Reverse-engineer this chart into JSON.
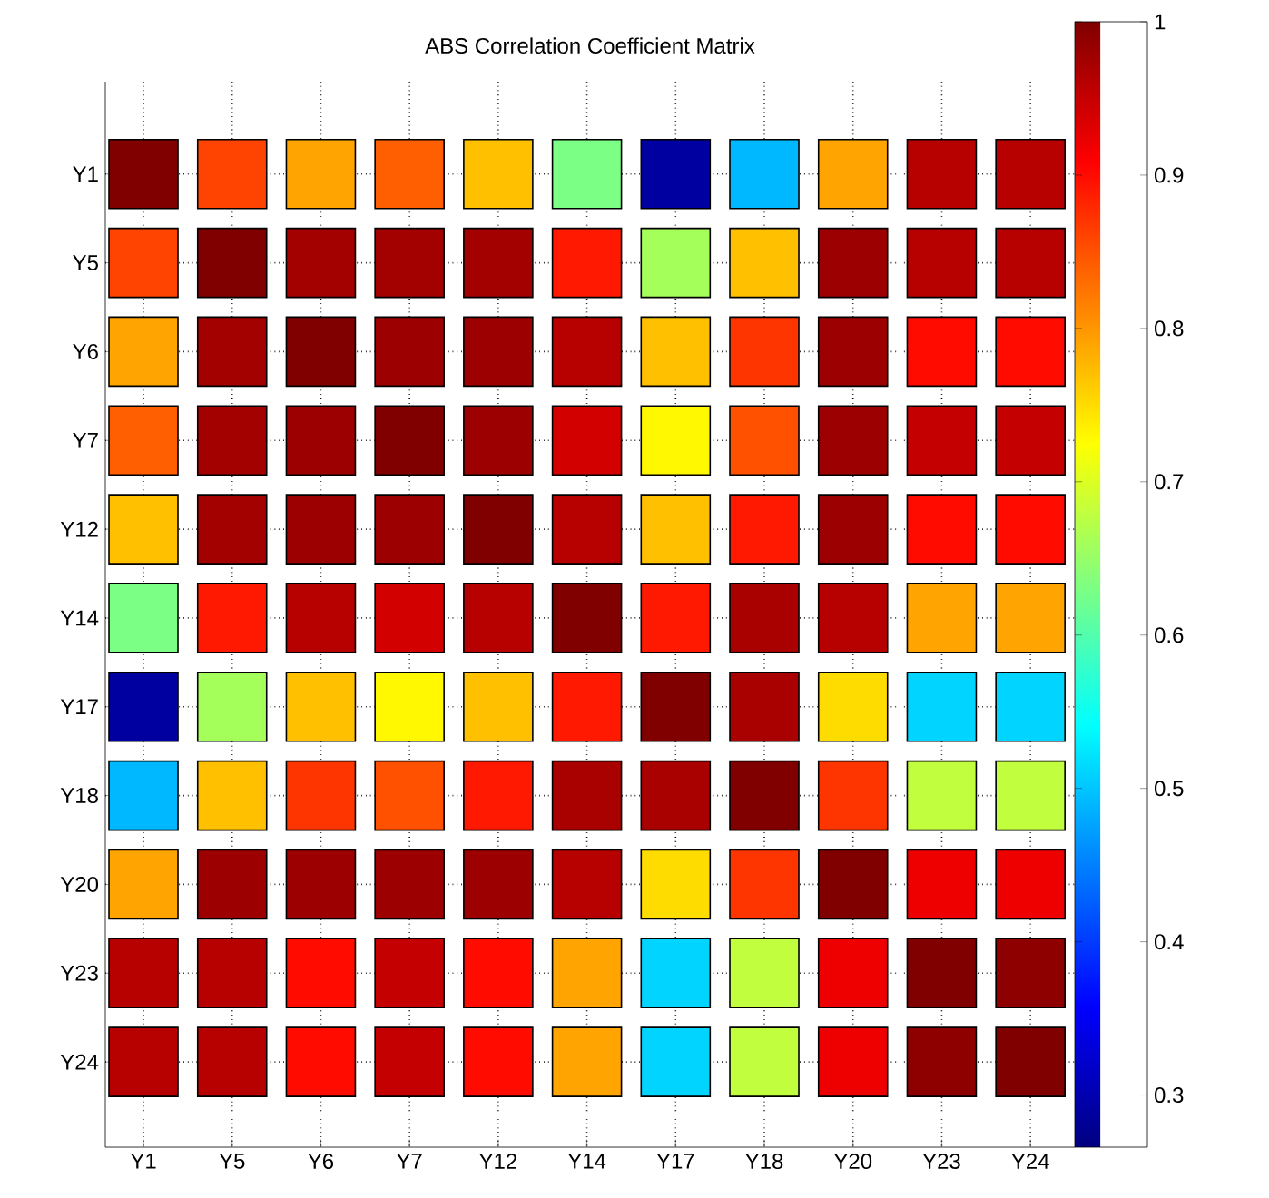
{
  "chart_data": {
    "type": "heatmap",
    "title": "ABS Correlation Coefficient Matrix",
    "categories": [
      "Y1",
      "Y5",
      "Y6",
      "Y7",
      "Y12",
      "Y14",
      "Y17",
      "Y18",
      "Y20",
      "Y23",
      "Y24"
    ],
    "y_categories": [
      "Y1",
      "Y5",
      "Y6",
      "Y7",
      "Y12",
      "Y14",
      "Y17",
      "Y18",
      "Y20",
      "Y23",
      "Y24"
    ],
    "cells": [
      [
        1,
        0.86,
        0.79,
        0.84,
        0.77,
        0.63,
        0.29,
        0.49,
        0.79,
        0.96,
        0.96
      ],
      [
        0.86,
        1,
        0.975,
        0.975,
        0.975,
        0.89,
        0.66,
        0.77,
        0.98,
        0.96,
        0.96
      ],
      [
        0.79,
        0.975,
        1,
        0.98,
        0.98,
        0.96,
        0.77,
        0.87,
        0.98,
        0.9,
        0.9
      ],
      [
        0.84,
        0.975,
        0.98,
        1,
        0.98,
        0.94,
        0.73,
        0.85,
        0.98,
        0.95,
        0.95
      ],
      [
        0.77,
        0.975,
        0.98,
        0.98,
        1,
        0.96,
        0.77,
        0.89,
        0.98,
        0.9,
        0.9
      ],
      [
        0.63,
        0.89,
        0.96,
        0.94,
        0.96,
        1,
        0.89,
        0.97,
        0.96,
        0.79,
        0.79
      ],
      [
        0.29,
        0.66,
        0.77,
        0.73,
        0.77,
        0.89,
        1,
        0.97,
        0.75,
        0.51,
        0.51
      ],
      [
        0.49,
        0.77,
        0.87,
        0.85,
        0.89,
        0.97,
        0.97,
        1,
        0.87,
        0.68,
        0.68
      ],
      [
        0.79,
        0.98,
        0.98,
        0.98,
        0.98,
        0.96,
        0.75,
        0.87,
        1,
        0.92,
        0.92
      ],
      [
        0.96,
        0.96,
        0.9,
        0.95,
        0.9,
        0.79,
        0.51,
        0.68,
        0.92,
        1,
        0.99
      ],
      [
        0.96,
        0.96,
        0.9,
        0.95,
        0.9,
        0.79,
        0.51,
        0.68,
        0.92,
        0.99,
        1
      ]
    ],
    "clim": [
      0.266,
      1
    ],
    "cticks": [
      0.3,
      0.4,
      0.5,
      0.6,
      0.7,
      0.8,
      0.9,
      1
    ],
    "grid": true
  }
}
